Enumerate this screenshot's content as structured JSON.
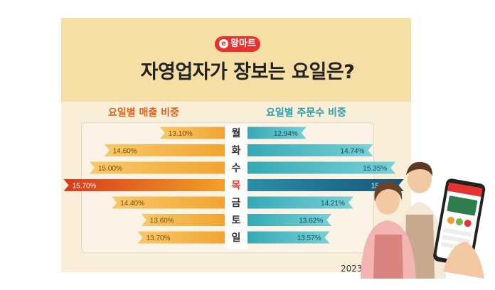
{
  "brand": {
    "logo_text": "왕마트",
    "logo_mark": "e",
    "color": "#e8322f"
  },
  "title": "자영업자가 장보는 요일은?",
  "left_heading": "요일별 매출 비중",
  "right_heading": "요일별 주문수 비중",
  "date_range": "2023년 1/1~4/1",
  "colors": {
    "sales": "#f5b642",
    "sales_highlight": "#e0471e",
    "orders": "#4cbcc6",
    "orders_highlight": "#1e6f96",
    "day_highlight": "#e8322f"
  },
  "chart_data": {
    "type": "bar",
    "orientation": "butterfly",
    "categories": [
      "월",
      "화",
      "수",
      "목",
      "금",
      "토",
      "일"
    ],
    "series": [
      {
        "name": "요일별 매출 비중",
        "values": [
          13.1,
          14.6,
          15.0,
          15.7,
          14.4,
          13.6,
          13.7
        ],
        "labels": [
          "13.10%",
          "14.60%",
          "15.00%",
          "15.70%",
          "14.40%",
          "13.60%",
          "13.70%"
        ]
      },
      {
        "name": "요일별 주문수 비중",
        "values": [
          12.94,
          14.74,
          15.35,
          15.57,
          14.21,
          13.62,
          13.57
        ],
        "labels": [
          "12.94%",
          "14.74%",
          "15.35%",
          "15.57%",
          "14.21%",
          "13.62%",
          "13.57%"
        ]
      }
    ],
    "highlight_category": "목",
    "unit": "%"
  }
}
